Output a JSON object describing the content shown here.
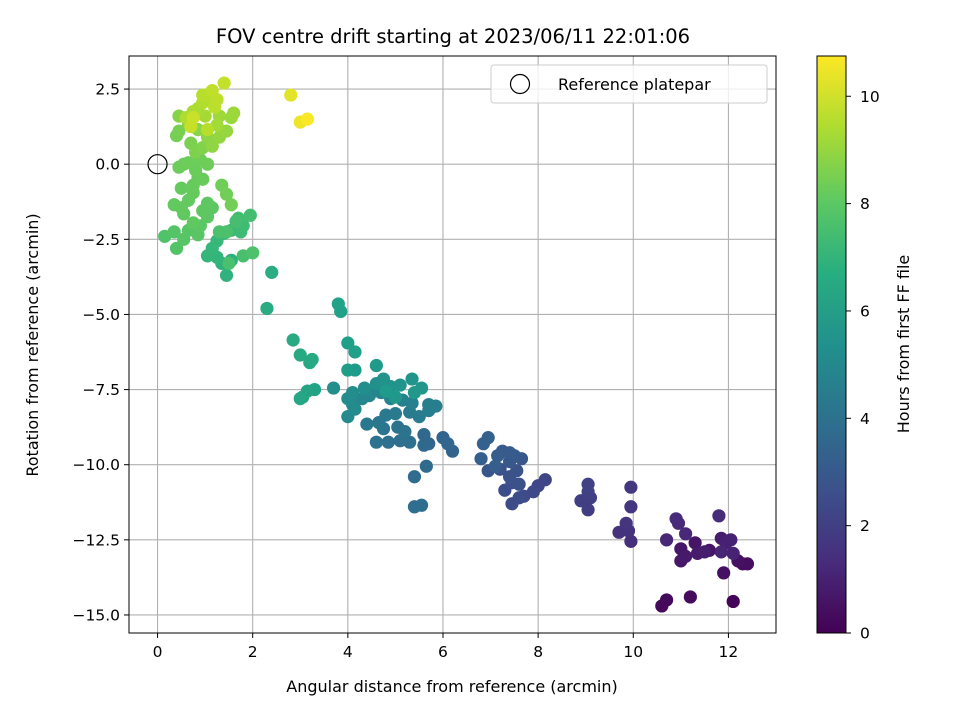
{
  "chart_data": {
    "type": "scatter",
    "title": "FOV centre drift starting at 2023/06/11 22:01:06",
    "xlabel": "Angular distance from reference (arcmin)",
    "ylabel": "Rotation from reference (arcmin)",
    "xlim": [
      -0.6,
      13.0
    ],
    "ylim": [
      -15.6,
      3.6
    ],
    "xticks": [
      0,
      2,
      4,
      6,
      8,
      10,
      12
    ],
    "xtick_labels": [
      "0",
      "2",
      "4",
      "6",
      "8",
      "10",
      "12"
    ],
    "yticks": [
      2.5,
      0.0,
      -2.5,
      -5.0,
      -7.5,
      -10.0,
      -12.5,
      -15.0
    ],
    "ytick_labels": [
      "2.5",
      "0.0",
      "−2.5",
      "−5.0",
      "−7.5",
      "−10.0",
      "−12.5",
      "−15.0"
    ],
    "grid": true,
    "legend": {
      "position": "top-right",
      "entries": [
        "Reference platepar"
      ]
    },
    "reference_point": {
      "x": 0,
      "y": 0
    },
    "colormap": "viridis",
    "colorbar": {
      "label": "Hours from first FF file",
      "range": [
        0,
        10.75
      ],
      "ticks": [
        0,
        2,
        4,
        6,
        8,
        10
      ],
      "tick_labels": [
        "0",
        "2",
        "4",
        "6",
        "8",
        "10"
      ]
    },
    "points": [
      [
        12.1,
        -14.55,
        0.1
      ],
      [
        10.6,
        -14.7,
        0.2
      ],
      [
        10.7,
        -14.5,
        0.25
      ],
      [
        11.2,
        -14.4,
        0.3
      ],
      [
        12.3,
        -13.3,
        0.35
      ],
      [
        12.4,
        -13.3,
        0.4
      ],
      [
        11.9,
        -13.6,
        0.45
      ],
      [
        12.2,
        -13.2,
        0.5
      ],
      [
        11.6,
        -12.85,
        0.55
      ],
      [
        11.3,
        -12.6,
        0.6
      ],
      [
        11.0,
        -12.8,
        0.65
      ],
      [
        11.0,
        -13.2,
        0.7
      ],
      [
        11.1,
        -13.05,
        0.75
      ],
      [
        11.35,
        -12.95,
        0.8
      ],
      [
        11.5,
        -12.9,
        0.85
      ],
      [
        11.85,
        -12.45,
        0.9
      ],
      [
        11.95,
        -12.6,
        0.95
      ],
      [
        12.05,
        -12.5,
        1.0
      ],
      [
        12.1,
        -12.95,
        1.05
      ],
      [
        11.85,
        -12.9,
        1.1
      ],
      [
        10.7,
        -12.5,
        1.15
      ],
      [
        11.1,
        -12.3,
        1.2
      ],
      [
        10.95,
        -11.95,
        1.25
      ],
      [
        10.9,
        -11.8,
        1.3
      ],
      [
        11.8,
        -11.7,
        1.35
      ],
      [
        9.95,
        -12.55,
        1.45
      ],
      [
        9.9,
        -12.2,
        1.5
      ],
      [
        9.7,
        -12.25,
        1.55
      ],
      [
        9.85,
        -11.95,
        1.6
      ],
      [
        9.95,
        -11.4,
        1.7
      ],
      [
        9.95,
        -10.75,
        1.75
      ],
      [
        9.05,
        -11.5,
        1.9
      ],
      [
        9.1,
        -11.1,
        1.95
      ],
      [
        8.9,
        -11.2,
        2.0
      ],
      [
        9.05,
        -10.9,
        2.05
      ],
      [
        9.05,
        -10.65,
        2.1
      ],
      [
        8.15,
        -10.5,
        2.2
      ],
      [
        8.0,
        -10.7,
        2.3
      ],
      [
        7.9,
        -10.9,
        2.35
      ],
      [
        7.7,
        -11.05,
        2.4
      ],
      [
        7.45,
        -11.3,
        2.45
      ],
      [
        7.6,
        -11.1,
        2.5
      ],
      [
        7.3,
        -10.85,
        2.55
      ],
      [
        7.45,
        -10.6,
        2.6
      ],
      [
        7.6,
        -10.65,
        2.65
      ],
      [
        7.4,
        -10.4,
        2.7
      ],
      [
        7.55,
        -10.2,
        2.75
      ],
      [
        7.2,
        -10.15,
        2.8
      ],
      [
        6.95,
        -10.2,
        2.85
      ],
      [
        7.4,
        -9.9,
        2.9
      ],
      [
        7.65,
        -9.8,
        2.95
      ],
      [
        7.5,
        -9.7,
        3.0
      ],
      [
        7.4,
        -9.6,
        3.05
      ],
      [
        7.25,
        -9.55,
        3.1
      ],
      [
        7.15,
        -9.7,
        3.15
      ],
      [
        7.1,
        -10.05,
        3.2
      ],
      [
        6.8,
        -9.8,
        3.25
      ],
      [
        6.85,
        -9.3,
        3.3
      ],
      [
        6.95,
        -9.1,
        3.35
      ],
      [
        6.2,
        -9.55,
        3.4
      ],
      [
        6.0,
        -9.1,
        3.45
      ],
      [
        6.1,
        -9.3,
        3.5
      ],
      [
        5.7,
        -9.3,
        3.55
      ],
      [
        5.6,
        -9.0,
        3.6
      ],
      [
        5.6,
        -9.35,
        3.65
      ],
      [
        5.65,
        -10.05,
        3.7
      ],
      [
        5.4,
        -10.4,
        3.75
      ],
      [
        5.55,
        -11.35,
        3.8
      ],
      [
        5.4,
        -11.4,
        3.85
      ],
      [
        5.3,
        -9.25,
        3.9
      ],
      [
        5.1,
        -9.2,
        3.95
      ],
      [
        4.85,
        -9.25,
        4.0
      ],
      [
        4.6,
        -9.25,
        4.05
      ],
      [
        5.2,
        -8.9,
        4.1
      ],
      [
        5.05,
        -8.75,
        4.15
      ],
      [
        4.75,
        -8.8,
        4.2
      ],
      [
        4.65,
        -8.6,
        4.25
      ],
      [
        4.4,
        -8.65,
        4.3
      ],
      [
        4.8,
        -8.35,
        4.35
      ],
      [
        5.0,
        -8.3,
        4.4
      ],
      [
        5.3,
        -8.25,
        4.45
      ],
      [
        5.5,
        -8.4,
        4.5
      ],
      [
        5.7,
        -8.2,
        4.55
      ],
      [
        5.85,
        -8.05,
        4.6
      ],
      [
        5.7,
        -8.0,
        4.65
      ],
      [
        5.35,
        -7.95,
        4.7
      ],
      [
        5.15,
        -7.85,
        4.75
      ],
      [
        4.9,
        -7.8,
        4.8
      ],
      [
        4.7,
        -7.6,
        4.85
      ],
      [
        4.55,
        -7.55,
        4.9
      ],
      [
        4.45,
        -7.7,
        4.95
      ],
      [
        4.3,
        -7.8,
        5.0
      ],
      [
        4.1,
        -8.0,
        5.05
      ],
      [
        4.0,
        -8.4,
        5.1
      ],
      [
        4.15,
        -8.15,
        5.15
      ],
      [
        4.0,
        -7.8,
        5.2
      ],
      [
        4.1,
        -7.6,
        5.25
      ],
      [
        3.7,
        -7.45,
        5.3
      ],
      [
        4.35,
        -7.45,
        5.35
      ],
      [
        4.6,
        -7.3,
        5.4
      ],
      [
        4.75,
        -7.15,
        5.45
      ],
      [
        4.9,
        -7.4,
        5.5
      ],
      [
        5.1,
        -7.35,
        5.55
      ],
      [
        5.35,
        -7.15,
        5.6
      ],
      [
        5.55,
        -7.45,
        5.65
      ],
      [
        5.4,
        -7.6,
        5.7
      ],
      [
        5.0,
        -7.75,
        5.75
      ],
      [
        4.8,
        -7.55,
        5.8
      ],
      [
        4.6,
        -6.7,
        5.85
      ],
      [
        4.15,
        -6.85,
        5.9
      ],
      [
        4.0,
        -6.85,
        5.95
      ],
      [
        4.15,
        -6.25,
        6.0
      ],
      [
        4.0,
        -5.95,
        6.05
      ],
      [
        3.85,
        -4.9,
        6.1
      ],
      [
        3.8,
        -4.65,
        6.15
      ],
      [
        3.3,
        -7.5,
        6.2
      ],
      [
        3.15,
        -7.55,
        6.25
      ],
      [
        3.05,
        -7.75,
        6.3
      ],
      [
        3.0,
        -7.8,
        6.35
      ],
      [
        3.2,
        -6.6,
        6.4
      ],
      [
        3.25,
        -6.5,
        6.45
      ],
      [
        3.0,
        -6.35,
        6.5
      ],
      [
        2.85,
        -5.85,
        6.55
      ],
      [
        2.3,
        -4.8,
        6.6
      ],
      [
        2.4,
        -3.6,
        6.7
      ],
      [
        1.55,
        -3.2,
        6.8
      ],
      [
        1.45,
        -3.7,
        6.9
      ],
      [
        1.35,
        -3.3,
        6.95
      ],
      [
        1.25,
        -3.1,
        7.0
      ],
      [
        1.15,
        -2.95,
        7.05
      ],
      [
        1.05,
        -3.05,
        7.1
      ],
      [
        1.15,
        -2.8,
        7.15
      ],
      [
        1.25,
        -2.55,
        7.2
      ],
      [
        1.4,
        -2.3,
        7.25
      ],
      [
        1.55,
        -2.2,
        7.3
      ],
      [
        1.75,
        -2.25,
        7.35
      ],
      [
        1.8,
        -2.05,
        7.4
      ],
      [
        1.7,
        -1.8,
        7.45
      ],
      [
        1.95,
        -1.7,
        7.5
      ],
      [
        1.65,
        -1.9,
        7.55
      ],
      [
        1.8,
        -3.05,
        7.6
      ],
      [
        1.5,
        -3.3,
        7.62
      ],
      [
        1.3,
        -2.25,
        7.65
      ],
      [
        1.45,
        -2.25,
        7.68
      ],
      [
        2.0,
        -2.95,
        7.7
      ],
      [
        0.15,
        -2.4,
        7.75
      ],
      [
        0.4,
        -2.8,
        7.8
      ],
      [
        0.35,
        -2.25,
        7.85
      ],
      [
        0.55,
        -2.5,
        7.9
      ],
      [
        0.65,
        -2.2,
        7.92
      ],
      [
        0.85,
        -2.35,
        7.94
      ],
      [
        0.9,
        -2.05,
        7.96
      ],
      [
        1.05,
        -1.75,
        7.98
      ],
      [
        1.15,
        -1.45,
        8.0
      ],
      [
        1.05,
        -1.3,
        8.02
      ],
      [
        0.95,
        -1.55,
        8.05
      ],
      [
        0.75,
        -1.95,
        8.08
      ],
      [
        0.55,
        -1.65,
        8.1
      ],
      [
        0.35,
        -1.35,
        8.12
      ],
      [
        0.5,
        -1.45,
        8.14
      ],
      [
        0.65,
        -1.2,
        8.16
      ],
      [
        0.75,
        -0.95,
        8.18
      ],
      [
        0.5,
        -0.8,
        8.2
      ],
      [
        0.75,
        -0.7,
        8.22
      ],
      [
        0.85,
        -0.45,
        8.24
      ],
      [
        0.95,
        -0.5,
        8.26
      ],
      [
        0.8,
        -0.2,
        8.28
      ],
      [
        0.55,
        0.0,
        8.3
      ],
      [
        0.45,
        -0.1,
        8.32
      ],
      [
        0.65,
        0.05,
        8.34
      ],
      [
        0.9,
        0.15,
        8.36
      ],
      [
        1.05,
        0.0,
        8.38
      ],
      [
        1.35,
        -0.7,
        8.4
      ],
      [
        1.45,
        -1.0,
        8.42
      ],
      [
        1.55,
        -1.35,
        8.44
      ],
      [
        0.4,
        0.95,
        8.5
      ],
      [
        0.45,
        1.1,
        8.55
      ],
      [
        0.7,
        0.7,
        8.6
      ],
      [
        0.8,
        0.4,
        8.65
      ],
      [
        0.95,
        0.55,
        8.7
      ],
      [
        0.65,
        1.35,
        8.75
      ],
      [
        0.45,
        1.6,
        8.8
      ],
      [
        0.85,
        1.15,
        8.85
      ],
      [
        1.05,
        0.9,
        8.9
      ],
      [
        1.15,
        0.6,
        8.95
      ],
      [
        1.3,
        0.9,
        9.0
      ],
      [
        1.45,
        1.1,
        9.05
      ],
      [
        1.55,
        1.55,
        9.1
      ],
      [
        1.6,
        1.7,
        9.15
      ],
      [
        1.3,
        1.6,
        9.2
      ],
      [
        1.25,
        1.3,
        9.25
      ],
      [
        1.0,
        1.6,
        9.3
      ],
      [
        0.85,
        1.85,
        9.35
      ],
      [
        0.75,
        1.75,
        9.4
      ],
      [
        0.6,
        1.55,
        9.45
      ],
      [
        0.95,
        2.05,
        9.5
      ],
      [
        1.1,
        2.25,
        9.55
      ],
      [
        0.95,
        2.3,
        9.6
      ],
      [
        1.05,
        1.15,
        9.62
      ],
      [
        1.2,
        1.9,
        9.65
      ],
      [
        1.25,
        2.15,
        9.7
      ],
      [
        1.15,
        2.45,
        9.75
      ],
      [
        1.4,
        2.7,
        9.8
      ],
      [
        0.7,
        1.25,
        9.85
      ],
      [
        0.75,
        1.55,
        9.9
      ],
      [
        2.8,
        2.3,
        10.3
      ],
      [
        3.0,
        1.4,
        10.5
      ],
      [
        3.15,
        1.5,
        10.7
      ]
    ]
  }
}
